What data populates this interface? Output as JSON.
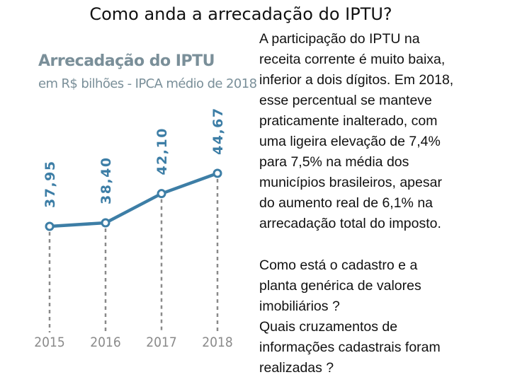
{
  "slide": {
    "title": "Como anda a arrecadação do IPTU?"
  },
  "chart_data": {
    "type": "line",
    "title": "Arrecadação do IPTU",
    "subtitle": "em R$ bilhões - IPCA médio de 2018",
    "categories": [
      "2015",
      "2016",
      "2017",
      "2018"
    ],
    "values": [
      37.95,
      38.4,
      42.1,
      44.67
    ],
    "data_labels": [
      "37,95",
      "38,40",
      "42,10",
      "44,67"
    ],
    "xlabel": "",
    "ylabel": "",
    "grid": false,
    "legend": "none",
    "line_color": "#3d7ea6",
    "label_color": "#3d7ea6",
    "dash_color": "#8a8a8a"
  },
  "text_panel": {
    "paragraph_1_lines": [
      "A participação do IPTU na",
      "receita corrente é muito baixa,",
      "inferior a dois dígitos. Em 2018,",
      "esse percentual se manteve",
      "praticamente inalterado, com",
      "uma ligeira elevação de 7,4%",
      "para 7,5% na média dos",
      "municípios brasileiros, apesar",
      "do aumento real de 6,1% na",
      "arrecadação total do imposto."
    ],
    "paragraph_2_lines": [
      "Como está o cadastro e a",
      "planta genérica de valores",
      "imobiliários ?",
      "Quais cruzamentos de",
      "informações cadastrais foram",
      "realizadas ?"
    ]
  }
}
